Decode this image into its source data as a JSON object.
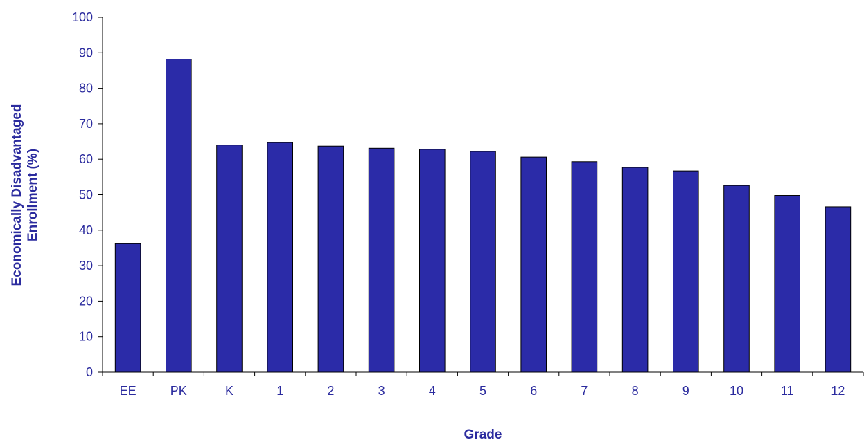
{
  "chart_data": {
    "type": "bar",
    "title": "",
    "xlabel": "Grade",
    "ylabel_lines": [
      "Economically Disadvantaged",
      "Enrollment (%)"
    ],
    "categories": [
      "EE",
      "PK",
      "K",
      "1",
      "2",
      "3",
      "4",
      "5",
      "6",
      "7",
      "8",
      "9",
      "10",
      "11",
      "12"
    ],
    "values": [
      36.2,
      88.2,
      64.0,
      64.7,
      63.7,
      63.1,
      62.8,
      62.2,
      60.6,
      59.3,
      57.7,
      56.7,
      52.6,
      49.8,
      46.6
    ],
    "ylim": [
      0,
      100
    ],
    "yticks": [
      0,
      10,
      20,
      30,
      40,
      50,
      60,
      70,
      80,
      90,
      100
    ],
    "grid": false,
    "legend": "none",
    "colors": {
      "bar": "#2b2ba8",
      "text": "#2b2b9e",
      "axis": "#000000"
    }
  }
}
